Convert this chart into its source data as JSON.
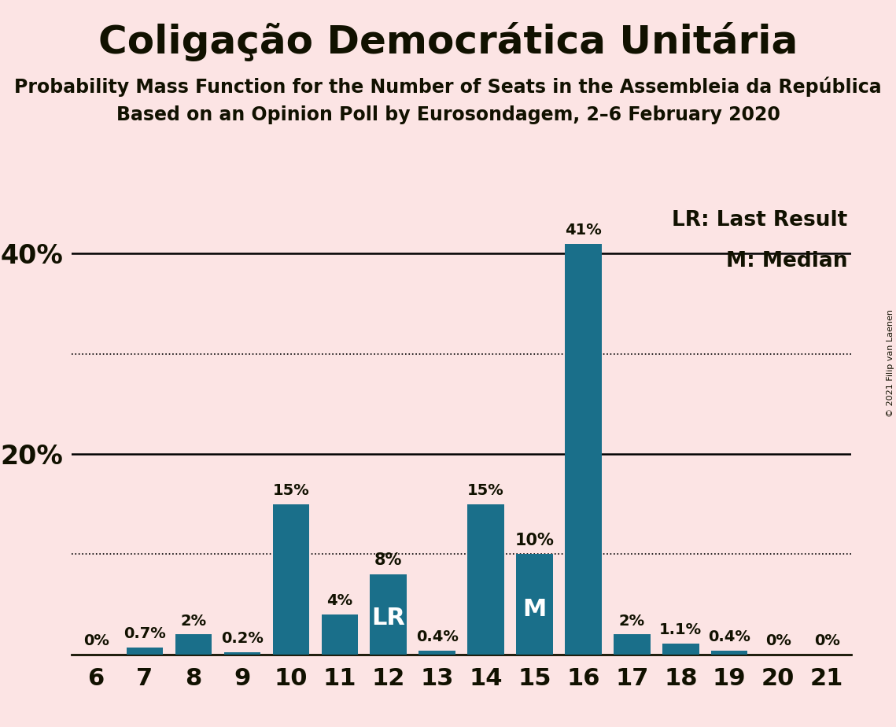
{
  "title": "Coligação Democrática Unitária",
  "subtitle1": "Probability Mass Function for the Number of Seats in the Assembleia da República",
  "subtitle2": "Based on an Opinion Poll by Eurosondagem, 2–6 February 2020",
  "copyright": "© 2021 Filip van Laenen",
  "seats": [
    6,
    7,
    8,
    9,
    10,
    11,
    12,
    13,
    14,
    15,
    16,
    17,
    18,
    19,
    20,
    21
  ],
  "probabilities": [
    0.0,
    0.7,
    2.0,
    0.2,
    15.0,
    4.0,
    8.0,
    0.4,
    15.0,
    10.0,
    41.0,
    2.0,
    1.1,
    0.4,
    0.0,
    0.0
  ],
  "labels": [
    "0%",
    "0.7%",
    "2%",
    "0.2%",
    "15%",
    "4%",
    "8%",
    "0.4%",
    "15%",
    "10%",
    "41%",
    "2%",
    "1.1%",
    "0.4%",
    "0%",
    "0%"
  ],
  "bar_color": "#1a6f8a",
  "background_color": "#fce4e4",
  "text_color": "#111100",
  "lr_seat": 12,
  "median_seat": 15,
  "legend_lr": "LR: Last Result",
  "legend_m": "M: Median",
  "ylim": [
    0,
    45
  ],
  "dotted_lines": [
    10,
    30
  ],
  "solid_lines": [
    20,
    40
  ],
  "bar_width": 0.75
}
